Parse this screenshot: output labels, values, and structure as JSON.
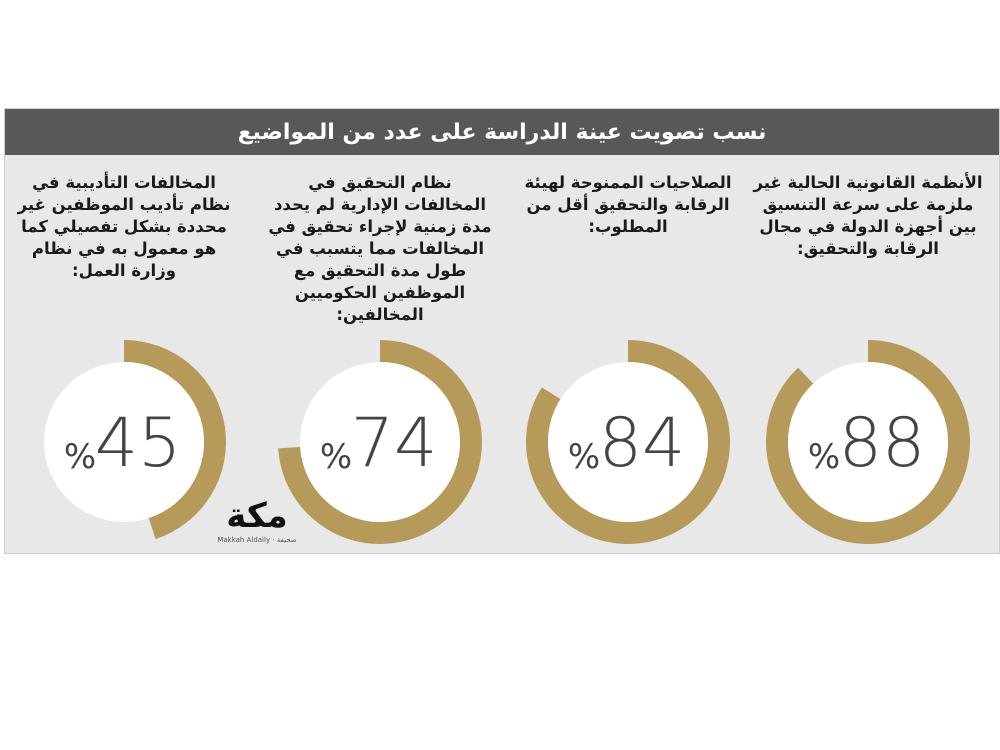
{
  "chart_data": {
    "type": "donut",
    "title": "نسب تصويت عينة الدراسة على عدد من المواضيع",
    "items": [
      {
        "label": "الأنظمة القانونية الحالية غير ملزمة على سرعة التنسيق بين أجهزة الدولة في مجال الرقابة والتحقيق:",
        "value": 88,
        "display": "88",
        "unit": "%"
      },
      {
        "label": "الصلاحيات الممنوحة لهيئة الرقابة والتحقيق أقل من المطلوب:",
        "value": 84,
        "display": "84",
        "unit": "%"
      },
      {
        "label": "نظام التحقيق في المخالفات الإدارية لم يحدد مدة زمنية لإجراء تحقيق في المخالفات مما يتسبب في طول مدة التحقيق مع الموظفين الحكوميين المخالفين:",
        "value": 74,
        "display": "74",
        "unit": "%"
      },
      {
        "label": "المخالفات التأديبية في نظام تأديب الموظفين غير محددة بشكل تفصيلي كما هو معمول به في نظام وزارة العمل:",
        "value": 45,
        "display": "45",
        "unit": "%"
      }
    ]
  },
  "colors": {
    "ring": "#b69a5a",
    "panel": "#e8e8e9",
    "header": "#58585a",
    "number": "#444446"
  },
  "logo": {
    "name": "مكة",
    "sub": "Makkah Aldaily · صحيفة"
  }
}
